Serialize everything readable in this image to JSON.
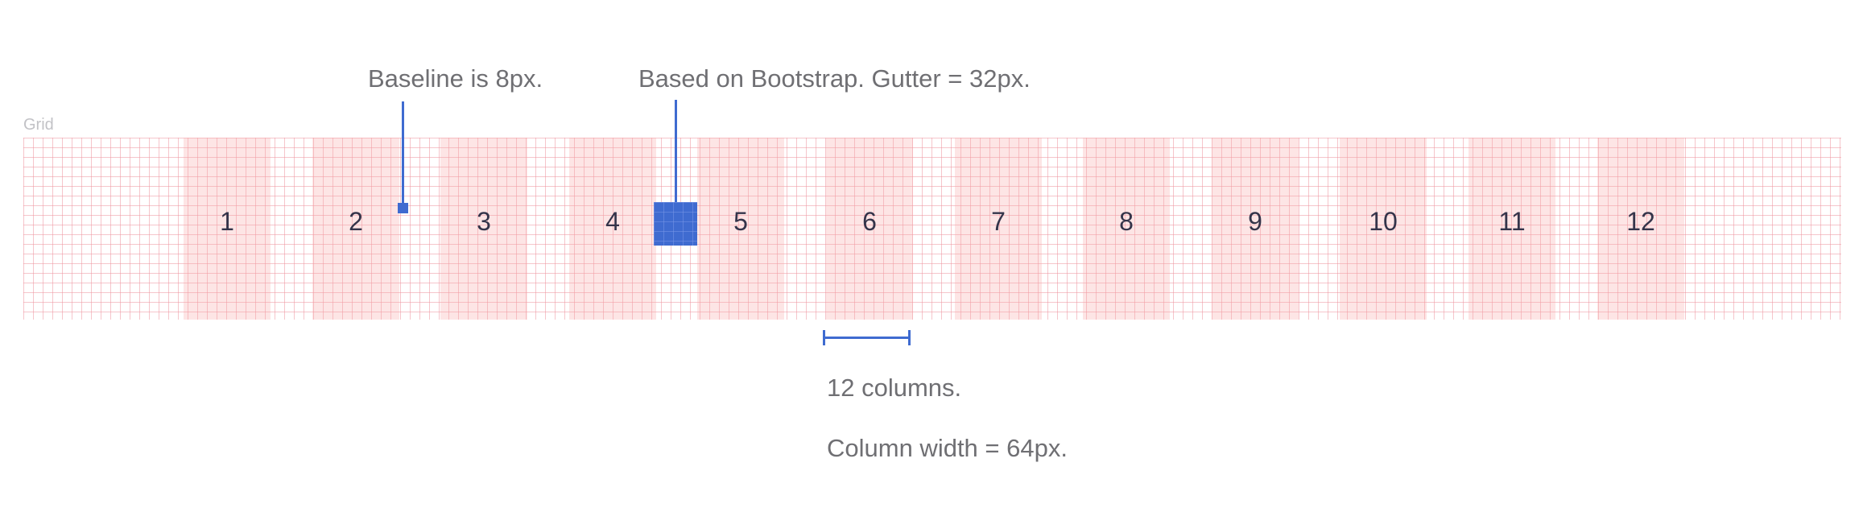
{
  "section_label": "Grid",
  "annotations": {
    "baseline": "Baseline is 8px.",
    "gutter": "Based on Bootstrap. Gutter = 32px.",
    "columns": "12 columns.",
    "column_width": "Column width = 64px."
  },
  "grid": {
    "columns": [
      "1",
      "2",
      "3",
      "4",
      "5",
      "6",
      "7",
      "8",
      "9",
      "10",
      "11",
      "12"
    ]
  },
  "colors": {
    "accent_blue": "#3f6bd0",
    "column_fill": "#fde6e6",
    "grid_line": "#ee96a0",
    "annotation_text": "#6f6f73",
    "column_number_text": "#34344a"
  }
}
